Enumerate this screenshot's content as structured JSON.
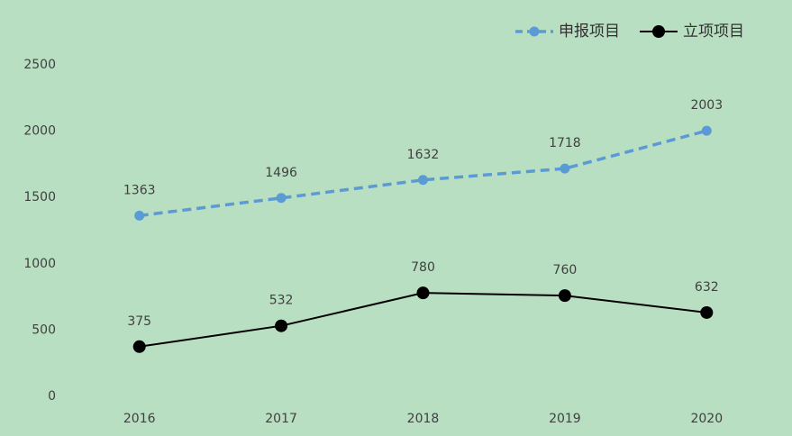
{
  "chart_data": {
    "type": "line",
    "categories": [
      "2016",
      "2017",
      "2018",
      "2019",
      "2020"
    ],
    "series": [
      {
        "name": "申报项目",
        "color": "#5b9bd5",
        "dashed": true,
        "values": [
          1363,
          1496,
          1632,
          1718,
          2003
        ]
      },
      {
        "name": "立项项目",
        "color": "#000000",
        "dashed": false,
        "values": [
          375,
          532,
          780,
          760,
          632
        ]
      }
    ],
    "ylim": [
      0,
      2500
    ],
    "yticks": [
      0,
      500,
      1000,
      1500,
      2000,
      2500
    ],
    "grid": false,
    "legend": "top-right"
  }
}
